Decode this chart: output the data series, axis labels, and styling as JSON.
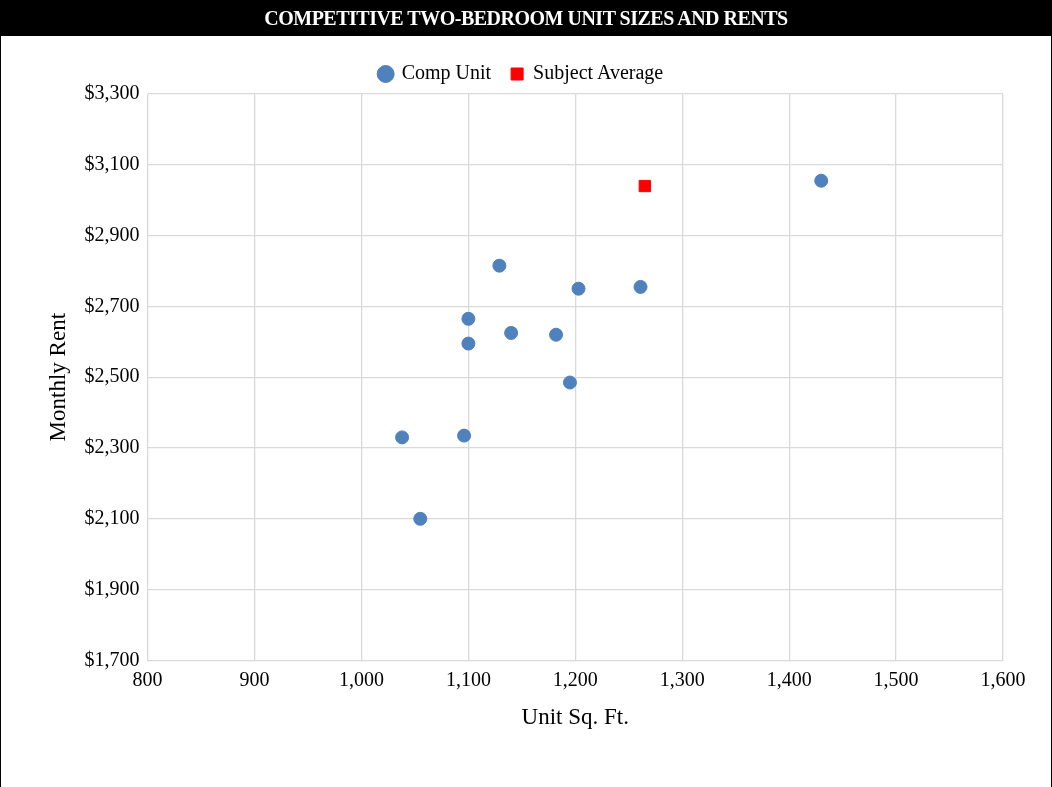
{
  "chart_data": {
    "type": "scatter",
    "title": "COMPETITIVE TWO-BEDROOM UNIT SIZES AND RENTS",
    "xlabel": "Unit Sq. Ft.",
    "ylabel": "Monthly Rent",
    "series": [
      {
        "name": "Comp Unit",
        "color": "#4f81bd",
        "marker": "circle",
        "x": [
          1055,
          1038,
          1096,
          1100,
          1100,
          1129,
          1140,
          1182,
          1195,
          1203,
          1261,
          1430
        ],
        "values": [
          2100,
          2330,
          2335,
          2665,
          2595,
          2815,
          2625,
          2620,
          2485,
          2750,
          2755,
          3055
        ]
      },
      {
        "name": "Subject Average",
        "color": "#ff0000",
        "marker": "square",
        "x": [
          1265
        ],
        "values": [
          3040
        ]
      }
    ],
    "xlim": [
      800,
      1600
    ],
    "xticks": [
      {
        "value": 800,
        "label": "800"
      },
      {
        "value": 900,
        "label": "900"
      },
      {
        "value": 1000,
        "label": "1,000"
      },
      {
        "value": 1100,
        "label": "1,100"
      },
      {
        "value": 1200,
        "label": "1,200"
      },
      {
        "value": 1300,
        "label": "1,300"
      },
      {
        "value": 1400,
        "label": "1,400"
      },
      {
        "value": 1500,
        "label": "1,500"
      },
      {
        "value": 1600,
        "label": "1,600"
      }
    ],
    "ylim": [
      1700,
      3300
    ],
    "yticks": [
      {
        "value": 1700,
        "label": "$1,700"
      },
      {
        "value": 1900,
        "label": "$1,900"
      },
      {
        "value": 2100,
        "label": "$2,100"
      },
      {
        "value": 2300,
        "label": "$2,300"
      },
      {
        "value": 2500,
        "label": "$2,500"
      },
      {
        "value": 2700,
        "label": "$2,700"
      },
      {
        "value": 2900,
        "label": "$2,900"
      },
      {
        "value": 3100,
        "label": "$3,100"
      },
      {
        "value": 3300,
        "label": "$3,300"
      }
    ],
    "grid": true,
    "legend": "top"
  }
}
